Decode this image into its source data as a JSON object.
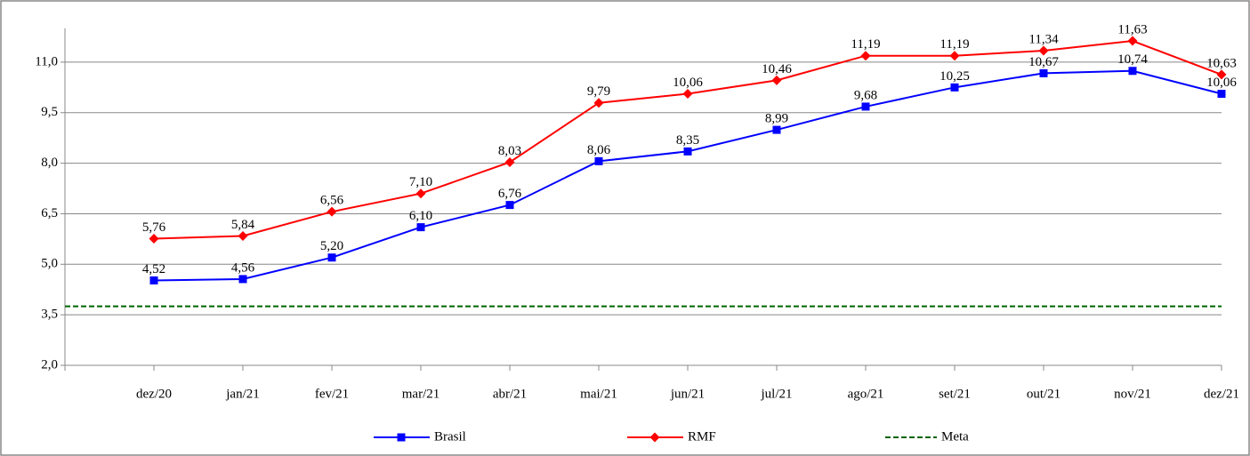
{
  "chart_data": {
    "type": "line",
    "categories": [
      "dez/20",
      "jan/21",
      "fev/21",
      "mar/21",
      "abr/21",
      "mai/21",
      "jun/21",
      "jul/21",
      "ago/21",
      "set/21",
      "out/21",
      "nov/21",
      "dez/21"
    ],
    "series": [
      {
        "name": "Brasil",
        "color": "#0000ff",
        "marker": "square",
        "values": [
          4.52,
          4.56,
          5.2,
          6.1,
          6.76,
          8.06,
          8.35,
          8.99,
          9.68,
          10.25,
          10.67,
          10.74,
          10.06
        ],
        "value_labels": [
          "4,52",
          "4,56",
          "5,20",
          "6,10",
          "6,76",
          "8,06",
          "8,35",
          "8,99",
          "9,68",
          "10,25",
          "10,67",
          "10,74",
          "10,06"
        ]
      },
      {
        "name": "RMF",
        "color": "#ff0000",
        "marker": "diamond",
        "values": [
          5.76,
          5.84,
          6.56,
          7.1,
          8.03,
          9.79,
          10.06,
          10.46,
          11.19,
          11.19,
          11.34,
          11.63,
          10.63
        ],
        "value_labels": [
          "5,76",
          "5,84",
          "6,56",
          "7,10",
          "8,03",
          "9,79",
          "10,06",
          "10,46",
          "11,19",
          "11,19",
          "11,34",
          "11,63",
          "10,63"
        ]
      }
    ],
    "reference_lines": [
      {
        "name": "Meta",
        "value": 3.75,
        "color": "#006400",
        "style": "dashed"
      }
    ],
    "ylim": [
      2,
      12
    ],
    "yticks": [
      {
        "value": 2,
        "label": "2,0"
      },
      {
        "value": 3.5,
        "label": "3,5"
      },
      {
        "value": 5,
        "label": "5,0"
      },
      {
        "value": 6.5,
        "label": "6,5"
      },
      {
        "value": 8,
        "label": "8,0"
      },
      {
        "value": 9.5,
        "label": "9,5"
      },
      {
        "value": 11,
        "label": "11,0"
      }
    ],
    "grid": true,
    "legend": "bottom"
  }
}
